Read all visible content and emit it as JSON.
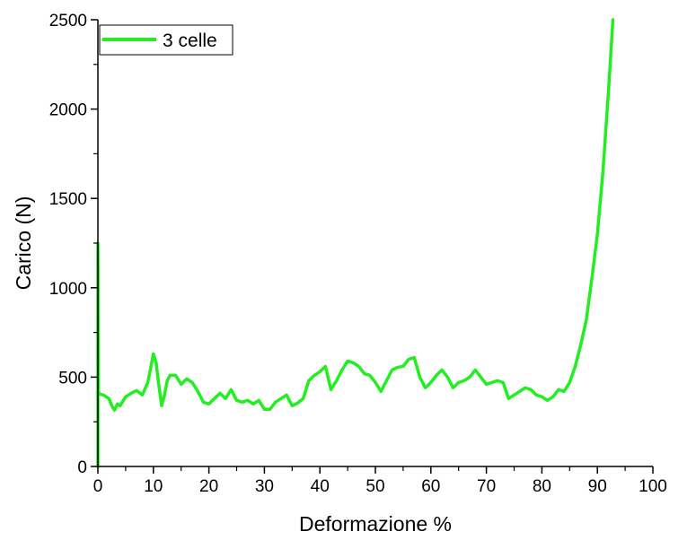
{
  "chart_data": {
    "type": "line",
    "title": "",
    "xlabel": "Deformazione %",
    "ylabel": "Carico (N)",
    "xlim": [
      0,
      100
    ],
    "ylim": [
      0,
      2500
    ],
    "xticks": [
      0,
      10,
      20,
      30,
      40,
      50,
      60,
      70,
      80,
      90,
      100
    ],
    "yticks": [
      0,
      500,
      1000,
      1500,
      2000,
      2500
    ],
    "grid": false,
    "legend_position": "top-left",
    "series": [
      {
        "name": "3 celle",
        "color": "#22ee22",
        "x": [
          0,
          0,
          0.1,
          0.3,
          1,
          2,
          2.5,
          3,
          3.5,
          4,
          5,
          6,
          7,
          8,
          9,
          10,
          10.5,
          11,
          11.5,
          12,
          12.5,
          13,
          14,
          15,
          16,
          17,
          18,
          19,
          20,
          21,
          22,
          23,
          24,
          25,
          26,
          27,
          28,
          29,
          30,
          31,
          32,
          33,
          34,
          35,
          36,
          37,
          38,
          39,
          40,
          41,
          42,
          43,
          44,
          45,
          46,
          47,
          48,
          49,
          50,
          51,
          52,
          53,
          54,
          55,
          56,
          57,
          58,
          59,
          60,
          61,
          62,
          63,
          64,
          65,
          66,
          67,
          68,
          69,
          70,
          71,
          72,
          73,
          74,
          75,
          76,
          77,
          78,
          79,
          80,
          81,
          82,
          83,
          84,
          85,
          86,
          87,
          88,
          89,
          90,
          91,
          92,
          92.8
        ],
        "y": [
          0,
          1250,
          420,
          405,
          400,
          380,
          340,
          315,
          350,
          340,
          390,
          410,
          425,
          400,
          470,
          630,
          580,
          450,
          340,
          400,
          480,
          510,
          510,
          460,
          490,
          470,
          420,
          360,
          350,
          380,
          410,
          380,
          430,
          370,
          360,
          370,
          350,
          370,
          320,
          320,
          360,
          380,
          400,
          340,
          355,
          380,
          480,
          510,
          530,
          560,
          430,
          480,
          540,
          590,
          580,
          560,
          520,
          510,
          470,
          420,
          480,
          540,
          555,
          560,
          600,
          610,
          500,
          440,
          470,
          510,
          540,
          500,
          440,
          470,
          480,
          500,
          540,
          500,
          460,
          470,
          480,
          470,
          380,
          400,
          420,
          440,
          430,
          400,
          390,
          370,
          390,
          430,
          420,
          470,
          560,
          680,
          820,
          1050,
          1300,
          1650,
          2100,
          2500
        ]
      }
    ]
  }
}
